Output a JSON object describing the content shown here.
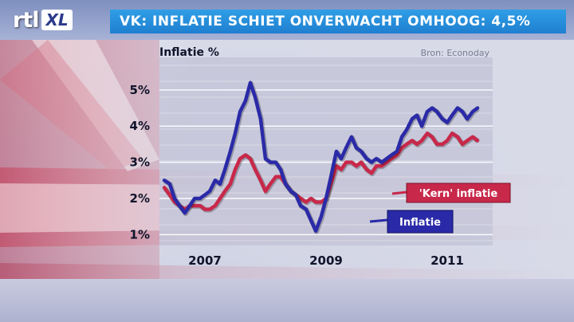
{
  "header": {
    "logo_text": "rtl",
    "logo_badge": "XL",
    "headline": "VK: INFLATIE SCHIET ONVERWACHT OMHOOG: 4,5%"
  },
  "colors": {
    "inflatie": "#2a2aa8",
    "kern": "#c8284a",
    "headline_bg": "#2a8fe0"
  },
  "chart_data": {
    "type": "line",
    "title": "Inflatie %",
    "source": "Bron: Econoday",
    "ylim": [
      0.7,
      5.9
    ],
    "y_ticks": [
      "5%",
      "4%",
      "3%",
      "2%",
      "1%"
    ],
    "y_tick_values": [
      5,
      4,
      3,
      2,
      1
    ],
    "x_ticks": [
      "2007",
      "2009",
      "2011"
    ],
    "x_tick_values": [
      2007.0,
      2009.0,
      2011.0
    ],
    "xlim": [
      2006.25,
      2011.75
    ],
    "grid": true,
    "series": [
      {
        "name": "Inflatie",
        "color": "#2a2aa8",
        "x": [
          2006.33,
          2006.42,
          2006.5,
          2006.58,
          2006.67,
          2006.75,
          2006.83,
          2006.92,
          2007.0,
          2007.08,
          2007.17,
          2007.25,
          2007.33,
          2007.42,
          2007.5,
          2007.58,
          2007.67,
          2007.75,
          2007.83,
          2007.92,
          2008.0,
          2008.08,
          2008.17,
          2008.25,
          2008.33,
          2008.42,
          2008.5,
          2008.58,
          2008.67,
          2008.75,
          2008.83,
          2008.92,
          2009.0,
          2009.08,
          2009.17,
          2009.25,
          2009.33,
          2009.42,
          2009.5,
          2009.58,
          2009.67,
          2009.75,
          2009.83,
          2009.92,
          2010.0,
          2010.08,
          2010.17,
          2010.25,
          2010.33,
          2010.42,
          2010.5,
          2010.58,
          2010.67,
          2010.75,
          2010.83,
          2010.92,
          2011.0,
          2011.08,
          2011.17,
          2011.25,
          2011.33,
          2011.42,
          2011.5
        ],
        "values": [
          2.5,
          2.4,
          2.0,
          1.8,
          1.6,
          1.8,
          2.0,
          2.0,
          2.1,
          2.2,
          2.5,
          2.4,
          2.8,
          3.3,
          3.8,
          4.4,
          4.7,
          5.2,
          4.8,
          4.2,
          3.1,
          3.0,
          3.0,
          2.8,
          2.4,
          2.2,
          2.1,
          1.8,
          1.7,
          1.4,
          1.1,
          1.5,
          2.0,
          2.6,
          3.3,
          3.1,
          3.4,
          3.7,
          3.4,
          3.3,
          3.1,
          3.0,
          3.1,
          3.0,
          3.1,
          3.2,
          3.3,
          3.7,
          3.9,
          4.2,
          4.3,
          4.0,
          4.4,
          4.5,
          4.4,
          4.2,
          4.1,
          4.3,
          4.5,
          4.4,
          4.2,
          4.4,
          4.5
        ]
      },
      {
        "name": "'Kern' inflatie",
        "color": "#c8284a",
        "x": [
          2006.33,
          2006.42,
          2006.5,
          2006.58,
          2006.67,
          2006.75,
          2006.83,
          2006.92,
          2007.0,
          2007.08,
          2007.17,
          2007.25,
          2007.33,
          2007.42,
          2007.5,
          2007.58,
          2007.67,
          2007.75,
          2007.83,
          2007.92,
          2008.0,
          2008.08,
          2008.17,
          2008.25,
          2008.33,
          2008.42,
          2008.5,
          2008.58,
          2008.67,
          2008.75,
          2008.83,
          2008.92,
          2009.0,
          2009.08,
          2009.17,
          2009.25,
          2009.33,
          2009.42,
          2009.5,
          2009.58,
          2009.67,
          2009.75,
          2009.83,
          2009.92,
          2010.0,
          2010.08,
          2010.17,
          2010.25,
          2010.33,
          2010.42,
          2010.5,
          2010.58,
          2010.67,
          2010.75,
          2010.83,
          2010.92,
          2011.0,
          2011.08,
          2011.17,
          2011.25,
          2011.33,
          2011.42,
          2011.5
        ],
        "values": [
          2.3,
          2.1,
          1.9,
          1.8,
          1.7,
          1.8,
          1.8,
          1.8,
          1.7,
          1.7,
          1.8,
          2.0,
          2.2,
          2.4,
          2.8,
          3.1,
          3.2,
          3.1,
          2.8,
          2.5,
          2.2,
          2.4,
          2.6,
          2.6,
          2.4,
          2.2,
          2.1,
          2.0,
          1.9,
          2.0,
          1.9,
          1.9,
          2.0,
          2.4,
          2.9,
          2.8,
          3.0,
          3.0,
          2.9,
          3.0,
          2.8,
          2.7,
          2.9,
          2.9,
          3.0,
          3.1,
          3.2,
          3.4,
          3.5,
          3.6,
          3.5,
          3.6,
          3.8,
          3.7,
          3.5,
          3.5,
          3.6,
          3.8,
          3.7,
          3.5,
          3.6,
          3.7,
          3.6
        ]
      }
    ],
    "annotations": [
      {
        "text": "'Kern' inflatie",
        "series": 1
      },
      {
        "text": "Inflatie",
        "series": 0
      }
    ]
  }
}
